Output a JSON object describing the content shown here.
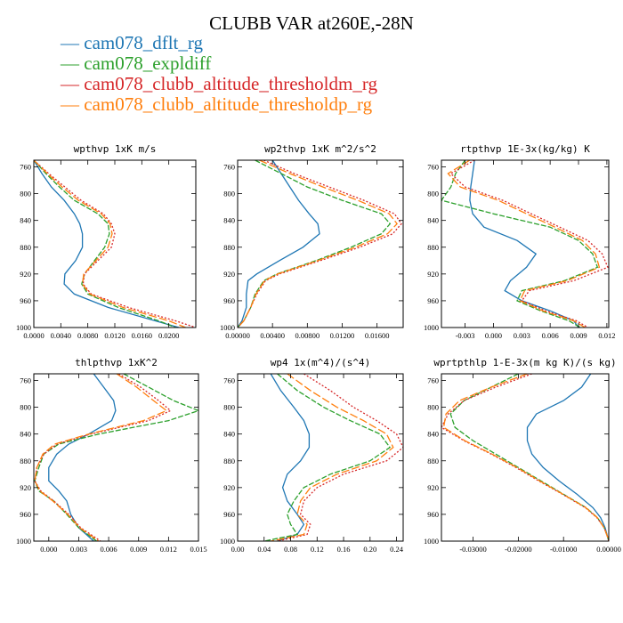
{
  "title": "CLUBB VAR at260E,-28N",
  "legend": [
    {
      "label": "cam078_dflt_rg",
      "color": "#1f77b4",
      "dash": "solid"
    },
    {
      "label": "cam078_expldiff",
      "color": "#2ca02c",
      "dash": "dashed"
    },
    {
      "label": "cam078_clubb_altitude_thresholdm_rg",
      "color": "#d62728",
      "dash": "dotted"
    },
    {
      "label": "cam078_clubb_altitude_thresholdp_rg",
      "color": "#ff7f0e",
      "dash": "longdash"
    }
  ],
  "chart_data": [
    {
      "type": "line",
      "title": "wpthvp  1xK m/s",
      "xlim": [
        0,
        0.024
      ],
      "xticks": [
        0.0,
        0.004,
        0.008,
        0.012,
        0.016,
        0.02
      ],
      "xticklabels": [
        "0.0000",
        "0.0040",
        "0.0080",
        "0.0120",
        "0.0160",
        "0.0200"
      ],
      "ylim": [
        1000,
        750
      ],
      "yticks": [
        760,
        800,
        840,
        880,
        920,
        960,
        1000
      ],
      "y": [
        750,
        770,
        790,
        810,
        830,
        845,
        860,
        880,
        900,
        920,
        935,
        950,
        970,
        990,
        1000
      ],
      "series": [
        {
          "name": "cam078_dflt_rg",
          "values": [
            0.0,
            0.0012,
            0.0026,
            0.0045,
            0.006,
            0.0068,
            0.0072,
            0.0072,
            0.0062,
            0.0046,
            0.0045,
            0.006,
            0.011,
            0.018,
            0.0215
          ]
        },
        {
          "name": "cam078_expldiff",
          "values": [
            0.0,
            0.0018,
            0.0038,
            0.006,
            0.0095,
            0.011,
            0.0112,
            0.0105,
            0.009,
            0.0075,
            0.0071,
            0.008,
            0.0125,
            0.0185,
            0.021
          ]
        },
        {
          "name": "cam078_clubb_altitude_thresholdm_rg",
          "values": [
            0.0,
            0.0022,
            0.0046,
            0.007,
            0.0103,
            0.0115,
            0.012,
            0.0115,
            0.0095,
            0.0075,
            0.0073,
            0.0085,
            0.014,
            0.021,
            0.024
          ]
        },
        {
          "name": "cam078_clubb_altitude_thresholdp_rg",
          "values": [
            0.0,
            0.002,
            0.0042,
            0.0066,
            0.01,
            0.0113,
            0.0116,
            0.011,
            0.0092,
            0.0074,
            0.0072,
            0.0083,
            0.0132,
            0.02,
            0.0225
          ]
        }
      ]
    },
    {
      "type": "line",
      "title": "wp2thvp  1xK m^2/s^2",
      "xlim": [
        0,
        0.019
      ],
      "xticks": [
        0.0,
        0.004,
        0.008,
        0.012,
        0.016
      ],
      "xticklabels": [
        "0.00000",
        "0.00400",
        "0.00800",
        "0.01200",
        "0.01600"
      ],
      "ylim": [
        1000,
        750
      ],
      "yticks": [
        760,
        800,
        840,
        880,
        920,
        960,
        1000
      ],
      "y": [
        750,
        770,
        790,
        810,
        830,
        845,
        860,
        880,
        900,
        920,
        930,
        950,
        970,
        990,
        1000
      ],
      "series": [
        {
          "name": "cam078_dflt_rg",
          "values": [
            0.004,
            0.005,
            0.006,
            0.007,
            0.0082,
            0.0092,
            0.0094,
            0.0075,
            0.0048,
            0.0022,
            0.0012,
            0.001,
            0.001,
            0.0005,
            0.0
          ]
        },
        {
          "name": "cam078_expldiff",
          "values": [
            0.002,
            0.005,
            0.008,
            0.012,
            0.0165,
            0.0175,
            0.0165,
            0.013,
            0.009,
            0.0045,
            0.003,
            0.002,
            0.0015,
            0.0007,
            0.0
          ]
        },
        {
          "name": "cam078_clubb_altitude_thresholdm_rg",
          "values": [
            0.003,
            0.0065,
            0.0105,
            0.0145,
            0.018,
            0.0188,
            0.0178,
            0.014,
            0.0095,
            0.0048,
            0.0032,
            0.0022,
            0.0015,
            0.0007,
            0.0
          ]
        },
        {
          "name": "cam078_clubb_altitude_thresholdp_rg",
          "values": [
            0.0025,
            0.006,
            0.0098,
            0.0138,
            0.0174,
            0.0183,
            0.0172,
            0.0135,
            0.0092,
            0.0046,
            0.0031,
            0.0021,
            0.0015,
            0.0007,
            0.0
          ]
        }
      ]
    },
    {
      "type": "line",
      "title": "rtpthvp  1E-3x(kg/kg) K",
      "xlim": [
        -0.0055,
        0.0122
      ],
      "xticks": [
        -0.003,
        0.0,
        0.003,
        0.006,
        0.009,
        0.012
      ],
      "xticklabels": [
        "-0.003",
        "0.000",
        "0.003",
        "0.006",
        "0.009",
        "0.012"
      ],
      "ylim": [
        1000,
        750
      ],
      "yticks": [
        760,
        800,
        840,
        880,
        920,
        960,
        1000
      ],
      "y": [
        750,
        770,
        790,
        810,
        830,
        850,
        870,
        890,
        910,
        930,
        945,
        960,
        975,
        990,
        1000
      ],
      "series": [
        {
          "name": "cam078_dflt_rg",
          "values": [
            -0.002,
            -0.0022,
            -0.0024,
            -0.0025,
            -0.0022,
            -0.001,
            0.0025,
            0.0045,
            0.0035,
            0.0018,
            0.0012,
            0.003,
            0.006,
            0.0085,
            0.009
          ]
        },
        {
          "name": "cam078_expldiff",
          "values": [
            -0.003,
            -0.004,
            -0.0045,
            -0.0055,
            0.0,
            0.006,
            0.009,
            0.0105,
            0.011,
            0.0075,
            0.003,
            0.0025,
            0.005,
            0.008,
            0.0092
          ]
        },
        {
          "name": "cam078_clubb_altitude_thresholdm_rg",
          "values": [
            -0.002,
            -0.0045,
            -0.003,
            0.001,
            0.004,
            0.007,
            0.01,
            0.0115,
            0.0121,
            0.0085,
            0.0038,
            0.003,
            0.0055,
            0.0088,
            0.01
          ]
        },
        {
          "name": "cam078_clubb_altitude_thresholdp_rg",
          "values": [
            -0.0025,
            -0.0048,
            -0.0035,
            0.0005,
            0.0035,
            0.0065,
            0.0094,
            0.0108,
            0.0112,
            0.0078,
            0.0033,
            0.0028,
            0.0052,
            0.0085,
            0.0097
          ]
        }
      ]
    },
    {
      "type": "line",
      "title": "thlpthvp  1xK^2",
      "xlim": [
        -0.0015,
        0.015
      ],
      "xticks": [
        0.0,
        0.003,
        0.006,
        0.009,
        0.012,
        0.015
      ],
      "xticklabels": [
        "0.000",
        "0.003",
        "0.006",
        "0.009",
        "0.012",
        "0.015"
      ],
      "ylim": [
        1000,
        750
      ],
      "yticks": [
        760,
        800,
        840,
        880,
        920,
        960,
        1000
      ],
      "y": [
        750,
        770,
        790,
        805,
        820,
        840,
        855,
        870,
        890,
        910,
        925,
        940,
        960,
        980,
        1000
      ],
      "series": [
        {
          "name": "cam078_dflt_rg",
          "values": [
            0.0045,
            0.0055,
            0.0065,
            0.0067,
            0.0063,
            0.004,
            0.002,
            0.0008,
            0.0,
            0.0,
            0.001,
            0.0018,
            0.0022,
            0.003,
            0.0045
          ]
        },
        {
          "name": "cam078_expldiff",
          "values": [
            0.0075,
            0.01,
            0.0125,
            0.015,
            0.012,
            0.005,
            0.001,
            -0.0005,
            -0.001,
            -0.0014,
            -0.001,
            0.0005,
            0.0018,
            0.003,
            0.0048
          ]
        },
        {
          "name": "cam078_clubb_altitude_thresholdm_rg",
          "values": [
            0.007,
            0.0092,
            0.011,
            0.0122,
            0.01,
            0.0042,
            0.0008,
            -0.0005,
            -0.0012,
            -0.0014,
            -0.0008,
            0.0005,
            0.002,
            0.0032,
            0.0052
          ]
        },
        {
          "name": "cam078_clubb_altitude_thresholdp_rg",
          "values": [
            0.0068,
            0.0088,
            0.0105,
            0.0118,
            0.0095,
            0.004,
            0.0006,
            -0.0006,
            -0.0012,
            -0.0014,
            -0.0009,
            0.0004,
            0.0019,
            0.0031,
            0.005
          ]
        }
      ]
    },
    {
      "type": "line",
      "title": "wp4  1x(m^4)/(s^4)",
      "xlim": [
        0,
        0.25
      ],
      "xticks": [
        0.0,
        0.04,
        0.08,
        0.12,
        0.16,
        0.2,
        0.24
      ],
      "xticklabels": [
        "0.00",
        "0.04",
        "0.08",
        "0.12",
        "0.16",
        "0.20",
        "0.24"
      ],
      "ylim": [
        1000,
        750
      ],
      "yticks": [
        760,
        800,
        840,
        880,
        920,
        960,
        1000
      ],
      "y": [
        750,
        775,
        800,
        820,
        840,
        860,
        880,
        900,
        920,
        940,
        960,
        975,
        990,
        1000
      ],
      "series": [
        {
          "name": "cam078_dflt_rg",
          "values": [
            0.05,
            0.065,
            0.085,
            0.1,
            0.108,
            0.108,
            0.095,
            0.075,
            0.068,
            0.075,
            0.09,
            0.1,
            0.09,
            0.06
          ]
        },
        {
          "name": "cam078_expldiff",
          "values": [
            0.06,
            0.09,
            0.13,
            0.17,
            0.215,
            0.23,
            0.2,
            0.14,
            0.1,
            0.085,
            0.075,
            0.08,
            0.09,
            0.04
          ]
        },
        {
          "name": "cam078_clubb_altitude_thresholdm_rg",
          "values": [
            0.1,
            0.14,
            0.175,
            0.21,
            0.24,
            0.25,
            0.225,
            0.16,
            0.12,
            0.1,
            0.095,
            0.11,
            0.105,
            0.06
          ]
        },
        {
          "name": "cam078_clubb_altitude_thresholdp_rg",
          "values": [
            0.075,
            0.11,
            0.15,
            0.19,
            0.225,
            0.235,
            0.21,
            0.15,
            0.11,
            0.095,
            0.09,
            0.105,
            0.1,
            0.05
          ]
        }
      ]
    },
    {
      "type": "line",
      "title": "wprtpthlp  1-E-3x(m kg K)/(s kg)",
      "xlim": [
        -0.037,
        0.0
      ],
      "xticks": [
        -0.03,
        -0.02,
        -0.01,
        0.0
      ],
      "xticklabels": [
        "-0.03000",
        "-0.02000",
        "-0.01000",
        "0.00000"
      ],
      "ylim": [
        1000,
        750
      ],
      "yticks": [
        760,
        800,
        840,
        880,
        920,
        960,
        1000
      ],
      "y": [
        750,
        770,
        790,
        810,
        830,
        850,
        870,
        890,
        910,
        930,
        950,
        965,
        980,
        995,
        1000
      ],
      "series": [
        {
          "name": "cam078_dflt_rg",
          "values": [
            -0.004,
            -0.006,
            -0.01,
            -0.016,
            -0.018,
            -0.018,
            -0.017,
            -0.0145,
            -0.011,
            -0.007,
            -0.0035,
            -0.0018,
            -0.0008,
            -0.0002,
            0.0
          ]
        },
        {
          "name": "cam078_expldiff",
          "values": [
            -0.02,
            -0.026,
            -0.032,
            -0.035,
            -0.034,
            -0.03,
            -0.025,
            -0.02,
            -0.015,
            -0.01,
            -0.005,
            -0.0025,
            -0.001,
            -0.0002,
            0.0
          ]
        },
        {
          "name": "cam078_clubb_altitude_thresholdm_rg",
          "values": [
            -0.017,
            -0.025,
            -0.032,
            -0.0355,
            -0.037,
            -0.032,
            -0.026,
            -0.0205,
            -0.0155,
            -0.0102,
            -0.0052,
            -0.0026,
            -0.001,
            -0.0002,
            0.0
          ]
        },
        {
          "name": "cam078_clubb_altitude_thresholdp_rg",
          "values": [
            -0.018,
            -0.026,
            -0.033,
            -0.036,
            -0.0365,
            -0.0318,
            -0.0258,
            -0.0203,
            -0.0153,
            -0.0101,
            -0.0051,
            -0.0025,
            -0.001,
            -0.0002,
            0.0
          ]
        }
      ]
    }
  ]
}
